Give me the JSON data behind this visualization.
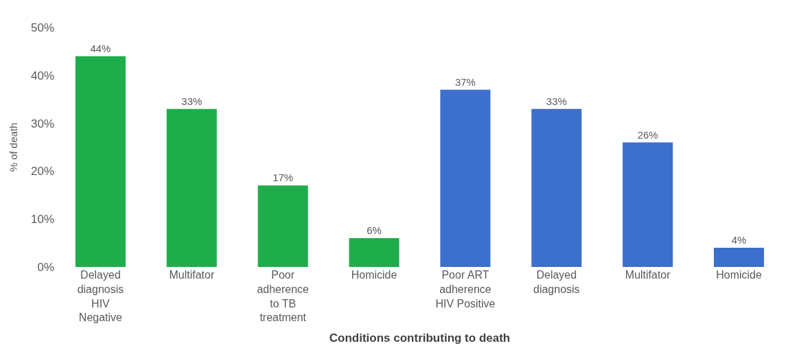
{
  "chart_data": {
    "type": "bar",
    "xlabel": "Conditions contributing to death",
    "ylabel": "% of death",
    "categories": [
      "Delayed\ndiagnosis\nHIV\nNegative",
      "Multifator",
      "Poor\nadherence\nto TB\ntreatment",
      "Homicide",
      "Poor ART\nadherence\nHIV Positive",
      "Delayed\ndiagnosis",
      "Multifator",
      "Homicide"
    ],
    "values": [
      44,
      33,
      17,
      6,
      37,
      33,
      26,
      4
    ],
    "value_labels": [
      "44%",
      "33%",
      "17%",
      "6%",
      "37%",
      "33%",
      "26%",
      "4%"
    ],
    "colors": [
      "#1fad4b",
      "#1fad4b",
      "#1fad4b",
      "#1fad4b",
      "#3d6fcc",
      "#3d6fcc",
      "#3d6fcc",
      "#3d6fcc"
    ],
    "ylim": [
      0,
      50
    ],
    "yticks": [
      {
        "value": 0,
        "label": "0%"
      },
      {
        "value": 10,
        "label": "10%"
      },
      {
        "value": 20,
        "label": "20%"
      },
      {
        "value": 30,
        "label": "30%"
      },
      {
        "value": 40,
        "label": "40%"
      },
      {
        "value": 50,
        "label": "50%"
      }
    ],
    "legend": false
  }
}
